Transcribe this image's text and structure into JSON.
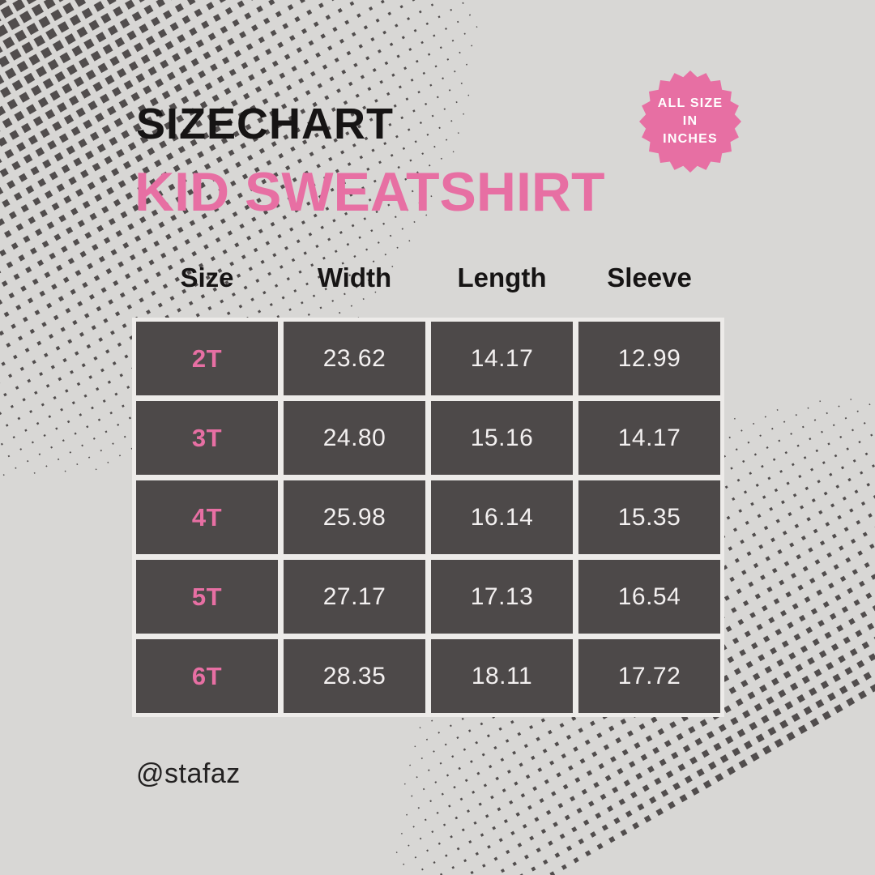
{
  "page": {
    "background_color": "#d8d7d5",
    "accent_pink": "#e76fa3",
    "cell_dark": "#4d4949",
    "halftone_color": "#514d4d"
  },
  "header": {
    "title": "SIZECHART",
    "subtitle": "KID SWEATSHIRT",
    "badge": {
      "lines": [
        "ALL SIZE",
        "IN",
        "INCHES"
      ]
    }
  },
  "table": {
    "columns": [
      "Size",
      "Width",
      "Length",
      "Sleeve"
    ],
    "rows": [
      [
        "2T",
        "23.62",
        "14.17",
        "12.99"
      ],
      [
        "3T",
        "24.80",
        "15.16",
        "14.17"
      ],
      [
        "4T",
        "25.98",
        "16.14",
        "15.35"
      ],
      [
        "5T",
        "27.17",
        "17.13",
        "16.54"
      ],
      [
        "6T",
        "28.35",
        "18.11",
        "17.72"
      ]
    ]
  },
  "footer": {
    "handle": "@stafaz"
  },
  "chart_data": {
    "type": "table",
    "title": "SIZECHART — KID SWEATSHIRT",
    "unit_note": "ALL SIZE IN INCHES",
    "columns": [
      "Size",
      "Width",
      "Length",
      "Sleeve"
    ],
    "rows": [
      [
        "2T",
        23.62,
        14.17,
        12.99
      ],
      [
        "3T",
        24.8,
        15.16,
        14.17
      ],
      [
        "4T",
        25.98,
        16.14,
        15.35
      ],
      [
        "5T",
        27.17,
        17.13,
        16.54
      ],
      [
        "6T",
        28.35,
        18.11,
        17.72
      ]
    ]
  }
}
